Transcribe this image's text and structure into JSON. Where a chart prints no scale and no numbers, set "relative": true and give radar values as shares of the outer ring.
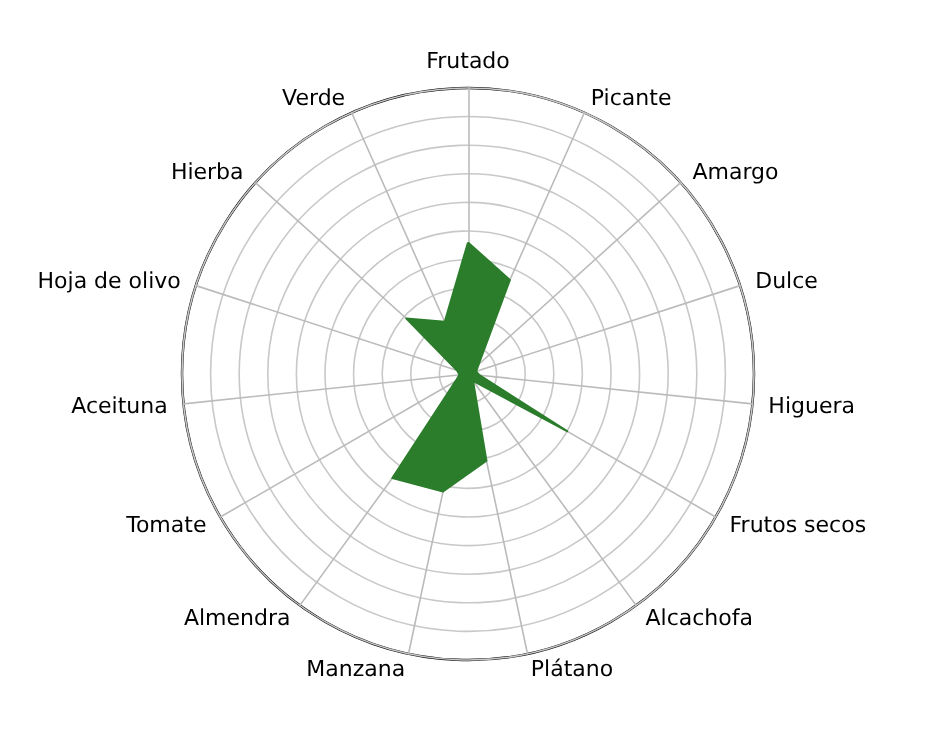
{
  "chart_data": {
    "type": "radar",
    "relative": true,
    "categories": [
      "Frutado",
      "Picante",
      "Amargo",
      "Dulce",
      "Higuera",
      "Frutos secos",
      "Alcachofa",
      "Plátano",
      "Manzana",
      "Almendra",
      "Tomate",
      "Aceituna",
      "Hoja de olivo",
      "Hierba",
      "Verde"
    ],
    "series": [
      {
        "color": "#2b7d2b",
        "values": [
          0.46,
          0.36,
          0.05,
          0.03,
          0.04,
          0.4,
          0.03,
          0.31,
          0.42,
          0.45,
          0.05,
          0.03,
          0.04,
          0.29,
          0.2
        ]
      }
    ],
    "grid": true,
    "marker": "none"
  }
}
